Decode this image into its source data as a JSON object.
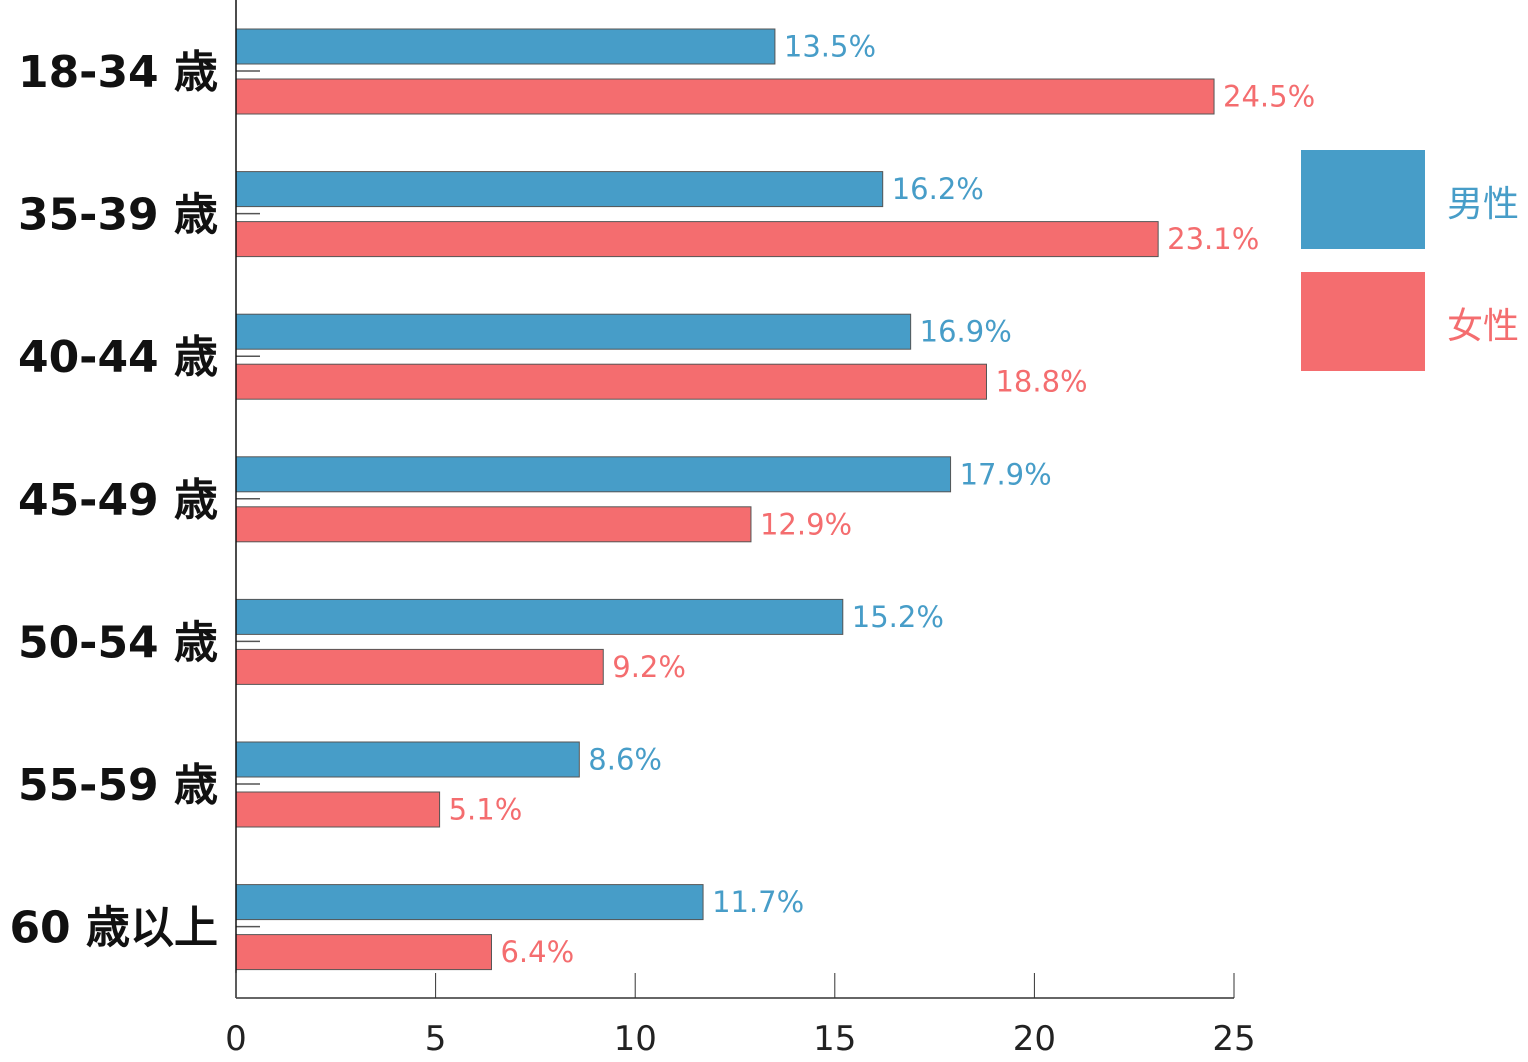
{
  "chart_data": {
    "type": "bar",
    "orientation": "horizontal",
    "title": "",
    "xlabel": "",
    "ylabel": "",
    "xlim": [
      0,
      25
    ],
    "xticks": [
      0,
      5,
      10,
      15,
      20,
      25
    ],
    "xtick_labels": [
      "0",
      "5",
      "10",
      "15",
      "20",
      "25"
    ],
    "grid": false,
    "legend_position": "right",
    "categories": [
      "18-34 歳",
      "35-39 歳",
      "40-44 歳",
      "45-49 歳",
      "50-54 歳",
      "55-59 歳",
      "60 歳以上"
    ],
    "series": [
      {
        "name": "男性",
        "color": "#479dc8",
        "values": [
          13.5,
          16.2,
          16.9,
          17.9,
          15.2,
          8.6,
          11.7
        ],
        "labels": [
          "13.5%",
          "16.2%",
          "16.9%",
          "17.9%",
          "15.2%",
          "8.6%",
          "11.7%"
        ]
      },
      {
        "name": "女性",
        "color": "#f46d6f",
        "values": [
          24.5,
          23.1,
          18.8,
          12.9,
          9.2,
          5.1,
          6.4
        ],
        "labels": [
          "24.5%",
          "23.1%",
          "18.8%",
          "12.9%",
          "9.2%",
          "5.1%",
          "6.4%"
        ]
      }
    ]
  }
}
